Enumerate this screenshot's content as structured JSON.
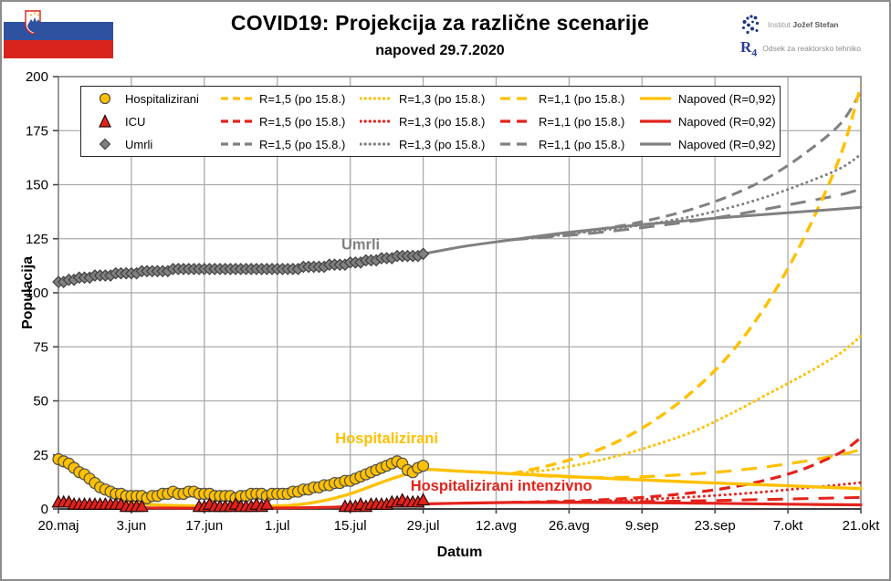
{
  "header": {
    "title": "COVID19: Projekcija za različne scenarije",
    "subtitle": "napoved 29.7.2020",
    "org1": {
      "name_light": "Institut",
      "name_bold": "Jožef Stefan"
    },
    "org2": {
      "logo_r": "R",
      "logo_4": "4",
      "label": "Odsek za reaktorsko tehniko"
    },
    "flag_name": "slovenia-flag"
  },
  "legend": {
    "rows": [
      {
        "series": "Hospitalizirani",
        "marker": "circle",
        "color": "#FFC000",
        "edge": "#4d4d4d",
        "entries": [
          {
            "style": "dashed",
            "label": "R=1,5 (po 15.8.)"
          },
          {
            "style": "dotted",
            "label": "R=1,3 (po 15.8.)"
          },
          {
            "style": "longdash",
            "label": "R=1,1 (po 15.8.)"
          },
          {
            "style": "solid",
            "label": "Napoved (R=0,92)"
          }
        ]
      },
      {
        "series": "ICU",
        "marker": "triangle",
        "color": "#E3231B",
        "edge": "#260605",
        "entries": [
          {
            "style": "dashed",
            "label": "R=1,5 (po 15.8.)"
          },
          {
            "style": "dotted",
            "label": "R=1,3 (po 15.8.)"
          },
          {
            "style": "longdash",
            "label": "R=1,1 (po 15.8.)"
          },
          {
            "style": "solid",
            "label": "Napoved (R=0,92)"
          }
        ]
      },
      {
        "series": "Umrli",
        "marker": "diamond",
        "color": "#808080",
        "edge": "#404040",
        "entries": [
          {
            "style": "dashed",
            "label": "R=1,5 (po 15.8.)"
          },
          {
            "style": "dotted",
            "label": "R=1,3 (po 15.8.)"
          },
          {
            "style": "longdash",
            "label": "R=1,1 (po 15.8.)"
          },
          {
            "style": "solid",
            "label": "Napoved (R=0,92)"
          }
        ]
      }
    ]
  },
  "chart_data": {
    "type": "line+scatter",
    "title": "COVID19: Projekcija za različne scenarije",
    "subtitle": "napoved 29.7.2020",
    "xlabel": "Datum",
    "ylabel": "Populacija",
    "ylim": [
      0,
      200
    ],
    "y_ticks": [
      0,
      25,
      50,
      75,
      100,
      125,
      150,
      175,
      200
    ],
    "x_ticks": [
      {
        "day": 0,
        "label": "20.maj"
      },
      {
        "day": 14,
        "label": "3.jun"
      },
      {
        "day": 28,
        "label": "17.jun"
      },
      {
        "day": 42,
        "label": "1.jul"
      },
      {
        "day": 56,
        "label": "15.jul"
      },
      {
        "day": 70,
        "label": "29.jul"
      },
      {
        "day": 84,
        "label": "12.avg"
      },
      {
        "day": 98,
        "label": "26.avg"
      },
      {
        "day": 112,
        "label": "9.sep"
      },
      {
        "day": 126,
        "label": "23.sep"
      },
      {
        "day": 140,
        "label": "7.okt"
      },
      {
        "day": 154,
        "label": "21.okt"
      }
    ],
    "x_range_days": [
      0,
      154
    ],
    "branch_day": 87,
    "grid": true,
    "colors": {
      "hospitalizirani": "#FFC000",
      "icu": "#E3231B",
      "umrli": "#808080",
      "grid": "#ABABAB"
    },
    "observed": [
      {
        "name": "Umrli",
        "marker": "diamond",
        "color": "#808080",
        "edge": "#404040",
        "start_day": 0,
        "values": [
          105,
          105,
          106,
          106,
          107,
          107,
          107,
          108,
          108,
          108,
          108,
          109,
          109,
          109,
          109,
          109,
          110,
          110,
          110,
          110,
          110,
          110,
          111,
          111,
          111,
          111,
          111,
          111,
          111,
          111,
          111,
          111,
          111,
          111,
          111,
          111,
          111,
          111,
          111,
          111,
          111,
          111,
          111,
          111,
          111,
          111,
          111,
          112,
          112,
          112,
          112,
          112,
          113,
          113,
          113,
          113,
          114,
          114,
          114,
          115,
          115,
          115,
          116,
          116,
          116,
          117,
          117,
          117,
          117,
          117,
          118
        ]
      },
      {
        "name": "Hospitalizirani",
        "marker": "circle",
        "color": "#FFC000",
        "edge": "#4d4d4d",
        "start_day": 0,
        "values": [
          23,
          22,
          21,
          19,
          17,
          16,
          14,
          12,
          10,
          9,
          8,
          7,
          7,
          6,
          6,
          6,
          6,
          5,
          6,
          6,
          7,
          7,
          8,
          7,
          7,
          8,
          8,
          7,
          7,
          7,
          6,
          6,
          6,
          6,
          5,
          6,
          6,
          7,
          7,
          7,
          6,
          7,
          7,
          7,
          7,
          8,
          8,
          9,
          9,
          10,
          10,
          11,
          11,
          12,
          12,
          13,
          13,
          14,
          15,
          16,
          17,
          18,
          19,
          20,
          21,
          22,
          21,
          18,
          17,
          19,
          20
        ]
      },
      {
        "name": "ICU",
        "marker": "triangle",
        "color": "#E3231B",
        "edge": "#260605",
        "start_day": 0,
        "values": [
          3,
          3,
          3,
          2,
          2,
          2,
          2,
          2,
          2,
          2,
          2,
          2,
          2,
          1,
          1,
          1,
          1,
          null,
          null,
          null,
          null,
          null,
          null,
          null,
          null,
          null,
          null,
          1,
          1,
          2,
          1,
          1,
          1,
          1,
          2,
          1,
          1,
          1,
          2,
          1,
          2,
          null,
          null,
          null,
          null,
          null,
          null,
          null,
          null,
          null,
          null,
          null,
          null,
          null,
          null,
          1,
          1,
          1,
          2,
          1,
          2,
          2,
          2,
          2,
          3,
          3,
          4,
          3,
          3,
          3,
          4
        ]
      }
    ],
    "fits": [
      {
        "series": "Umrli",
        "label": "Napoved (R=0,92)",
        "color": "#808080",
        "width": 3,
        "points": [
          [
            68,
            117.5
          ],
          [
            70,
            118
          ],
          [
            78,
            121.5
          ],
          [
            87,
            124.5
          ],
          [
            98,
            128
          ],
          [
            112,
            131.5
          ],
          [
            126,
            134.5
          ],
          [
            140,
            137
          ],
          [
            154,
            139.5
          ]
        ]
      },
      {
        "series": "Hospitalizirani",
        "label": "Napoved (R=0,92)",
        "color": "#FFC000",
        "width": 3.4,
        "points": [
          [
            0,
            22
          ],
          [
            4,
            16
          ],
          [
            8,
            9
          ],
          [
            12,
            4.5
          ],
          [
            16,
            2.4
          ],
          [
            22,
            1.6
          ],
          [
            30,
            1.3
          ],
          [
            38,
            1.2
          ],
          [
            44,
            1.6
          ],
          [
            48,
            2.6
          ],
          [
            52,
            4.4
          ],
          [
            56,
            7
          ],
          [
            60,
            10.5
          ],
          [
            64,
            14
          ],
          [
            68,
            17
          ],
          [
            70,
            18.3
          ],
          [
            76,
            17.6
          ],
          [
            87,
            16.3
          ],
          [
            98,
            15
          ],
          [
            112,
            13.4
          ],
          [
            126,
            12
          ],
          [
            140,
            10.7
          ],
          [
            154,
            9.4
          ]
        ]
      },
      {
        "series": "ICU",
        "label": "Napoved (R=0,92)",
        "color": "#E3231B",
        "width": 3.2,
        "points": [
          [
            0,
            2.5
          ],
          [
            4,
            1.8
          ],
          [
            8,
            1.1
          ],
          [
            12,
            0.7
          ],
          [
            16,
            0.5
          ],
          [
            26,
            0.35
          ],
          [
            40,
            0.4
          ],
          [
            48,
            0.6
          ],
          [
            54,
            0.9
          ],
          [
            60,
            1.4
          ],
          [
            66,
            2
          ],
          [
            70,
            2.3
          ],
          [
            78,
            2.7
          ],
          [
            87,
            3
          ],
          [
            98,
            3
          ],
          [
            112,
            2.9
          ],
          [
            126,
            2.6
          ],
          [
            140,
            2.2
          ],
          [
            154,
            1.9
          ]
        ]
      }
    ],
    "projections": [
      {
        "series": "Umrli",
        "scenario": "R=1,5 (po 15.8.)",
        "style": "dashed",
        "color": "#808080",
        "width": 3,
        "points": [
          [
            87,
            124.5
          ],
          [
            94,
            126.5
          ],
          [
            101,
            128.5
          ],
          [
            108,
            131
          ],
          [
            115,
            134.5
          ],
          [
            122,
            139
          ],
          [
            129,
            145
          ],
          [
            136,
            153
          ],
          [
            143,
            164
          ],
          [
            150,
            178
          ],
          [
            154,
            193
          ]
        ]
      },
      {
        "series": "Umrli",
        "scenario": "R=1,3 (po 15.8.)",
        "style": "dotted",
        "color": "#808080",
        "width": 3,
        "points": [
          [
            87,
            124.5
          ],
          [
            94,
            126
          ],
          [
            101,
            128
          ],
          [
            108,
            130
          ],
          [
            115,
            132.5
          ],
          [
            122,
            135.5
          ],
          [
            129,
            139.5
          ],
          [
            136,
            144.5
          ],
          [
            143,
            150.5
          ],
          [
            150,
            157.5
          ],
          [
            154,
            164
          ]
        ]
      },
      {
        "series": "Umrli",
        "scenario": "R=1,1 (po 15.8.)",
        "style": "longdash",
        "color": "#808080",
        "width": 3,
        "points": [
          [
            87,
            124.5
          ],
          [
            94,
            125.8
          ],
          [
            101,
            127.2
          ],
          [
            108,
            129
          ],
          [
            115,
            131
          ],
          [
            122,
            133.2
          ],
          [
            129,
            135.8
          ],
          [
            136,
            138.8
          ],
          [
            143,
            142
          ],
          [
            150,
            145.3
          ],
          [
            154,
            148
          ]
        ]
      },
      {
        "series": "Hospitalizirani",
        "scenario": "R=1,5 (po 15.8.)",
        "style": "dashed",
        "color": "#FFC000",
        "width": 3.4,
        "points": [
          [
            87,
            16.3
          ],
          [
            94,
            20
          ],
          [
            101,
            25
          ],
          [
            108,
            32
          ],
          [
            115,
            42
          ],
          [
            122,
            55
          ],
          [
            129,
            72
          ],
          [
            136,
            95
          ],
          [
            143,
            125
          ],
          [
            150,
            163
          ],
          [
            154,
            196
          ]
        ]
      },
      {
        "series": "Hospitalizirani",
        "scenario": "R=1,3 (po 15.8.)",
        "style": "dotted",
        "color": "#FFC000",
        "width": 3.2,
        "points": [
          [
            87,
            16.3
          ],
          [
            94,
            18
          ],
          [
            101,
            21
          ],
          [
            108,
            25
          ],
          [
            115,
            30
          ],
          [
            122,
            36
          ],
          [
            129,
            44
          ],
          [
            136,
            53
          ],
          [
            143,
            62
          ],
          [
            150,
            72
          ],
          [
            154,
            80
          ]
        ]
      },
      {
        "series": "Hospitalizirani",
        "scenario": "R=1,1 (po 15.8.)",
        "style": "longdash",
        "color": "#FFC000",
        "width": 3.2,
        "points": [
          [
            87,
            16.3
          ],
          [
            94,
            15.2
          ],
          [
            101,
            14.6
          ],
          [
            108,
            14.6
          ],
          [
            115,
            15.2
          ],
          [
            122,
            16.2
          ],
          [
            129,
            17.6
          ],
          [
            136,
            19.5
          ],
          [
            143,
            22
          ],
          [
            150,
            25
          ],
          [
            154,
            27.5
          ]
        ]
      },
      {
        "series": "ICU",
        "scenario": "R=1,5 (po 15.8.)",
        "style": "dashed",
        "color": "#E3231B",
        "width": 3.2,
        "points": [
          [
            87,
            3
          ],
          [
            94,
            3.4
          ],
          [
            101,
            3.9
          ],
          [
            108,
            4.7
          ],
          [
            115,
            5.9
          ],
          [
            122,
            7.6
          ],
          [
            129,
            10
          ],
          [
            136,
            13.5
          ],
          [
            143,
            18.5
          ],
          [
            150,
            26
          ],
          [
            154,
            33
          ]
        ]
      },
      {
        "series": "ICU",
        "scenario": "R=1,3 (po 15.8.)",
        "style": "dotted",
        "color": "#E3231B",
        "width": 3,
        "points": [
          [
            87,
            3
          ],
          [
            94,
            3.2
          ],
          [
            101,
            3.5
          ],
          [
            108,
            4
          ],
          [
            115,
            4.7
          ],
          [
            122,
            5.6
          ],
          [
            129,
            6.7
          ],
          [
            136,
            8
          ],
          [
            143,
            9.6
          ],
          [
            150,
            11.2
          ],
          [
            154,
            12.2
          ]
        ]
      },
      {
        "series": "ICU",
        "scenario": "R=1,1 (po 15.8.)",
        "style": "longdash",
        "color": "#E3231B",
        "width": 3,
        "points": [
          [
            87,
            3
          ],
          [
            94,
            3.05
          ],
          [
            101,
            3.15
          ],
          [
            108,
            3.3
          ],
          [
            115,
            3.5
          ],
          [
            122,
            3.75
          ],
          [
            129,
            4.05
          ],
          [
            136,
            4.4
          ],
          [
            143,
            4.75
          ],
          [
            150,
            5.1
          ],
          [
            154,
            5.3
          ]
        ]
      }
    ],
    "annotations": [
      {
        "text": "Umrli",
        "color": "#808080",
        "day": 58,
        "value": 122.5
      },
      {
        "text": "Hospitalizirani",
        "color": "#FFC000",
        "day": 63,
        "value": 33
      },
      {
        "text": "Hospitalizirani intenzivno",
        "color": "#E3231B",
        "day": 85,
        "value": 11
      }
    ]
  }
}
